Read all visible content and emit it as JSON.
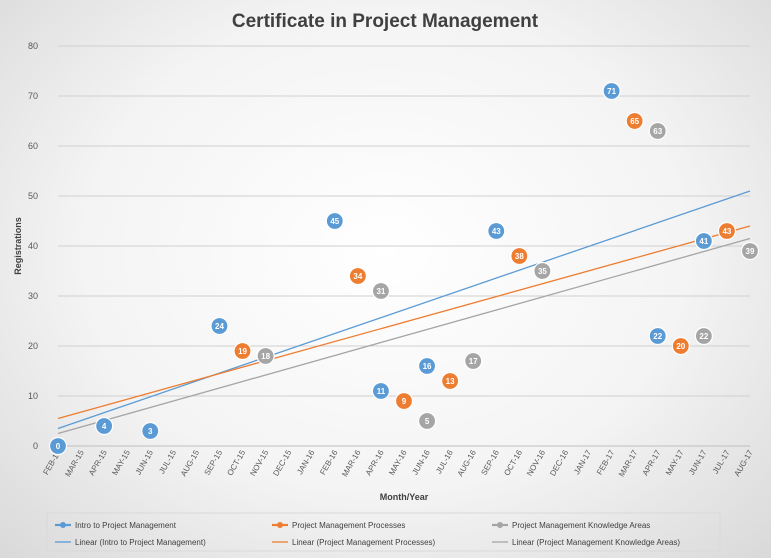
{
  "chart_data": {
    "type": "scatter",
    "title": "Certificate in Project Management",
    "xlabel": "Month/Year",
    "ylabel": "Registrations",
    "ylim": [
      0,
      80
    ],
    "yticks": [
      0,
      10,
      20,
      30,
      40,
      50,
      60,
      70,
      80
    ],
    "grid": true,
    "legend_position": "bottom",
    "categories": [
      "FEB-15",
      "MAR-15",
      "APR-15",
      "MAY-15",
      "JUN-15",
      "JUL-15",
      "AUG-15",
      "SEP-15",
      "OCT-15",
      "NOV-15",
      "DEC-15",
      "JAN-16",
      "FEB-16",
      "MAR-16",
      "APR-16",
      "MAY-16",
      "JUN-16",
      "JUL-16",
      "AUG-16",
      "SEP-16",
      "OCT-16",
      "NOV-16",
      "DEC-16",
      "JAN-17",
      "FEB-17",
      "MAR-17",
      "APR-17",
      "MAY-17",
      "JUN-17",
      "JUL-17",
      "AUG-17"
    ],
    "series": [
      {
        "name": "Intro to Project Management",
        "color": "#5b9bd5",
        "points": [
          {
            "x": "FEB-15",
            "y": 0
          },
          {
            "x": "APR-15",
            "y": 4
          },
          {
            "x": "JUN-15",
            "y": 3
          },
          {
            "x": "SEP-15",
            "y": 24
          },
          {
            "x": "FEB-16",
            "y": 45
          },
          {
            "x": "APR-16",
            "y": 11
          },
          {
            "x": "JUN-16",
            "y": 16
          },
          {
            "x": "SEP-16",
            "y": 43
          },
          {
            "x": "FEB-17",
            "y": 71
          },
          {
            "x": "APR-17",
            "y": 22
          },
          {
            "x": "JUN-17",
            "y": 41
          }
        ]
      },
      {
        "name": "Project Management Processes",
        "color": "#ed7d31",
        "points": [
          {
            "x": "OCT-15",
            "y": 19
          },
          {
            "x": "MAR-16",
            "y": 34
          },
          {
            "x": "MAY-16",
            "y": 9
          },
          {
            "x": "JUL-16",
            "y": 13
          },
          {
            "x": "OCT-16",
            "y": 38
          },
          {
            "x": "MAR-17",
            "y": 65
          },
          {
            "x": "MAY-17",
            "y": 20
          },
          {
            "x": "JUL-17",
            "y": 43
          }
        ]
      },
      {
        "name": "Project Management Knowledge Areas",
        "color": "#a5a5a5",
        "points": [
          {
            "x": "NOV-15",
            "y": 18
          },
          {
            "x": "APR-16",
            "y": 31
          },
          {
            "x": "JUN-16",
            "y": 5
          },
          {
            "x": "AUG-16",
            "y": 17
          },
          {
            "x": "NOV-16",
            "y": 35
          },
          {
            "x": "APR-17",
            "y": 63
          },
          {
            "x": "JUN-17",
            "y": 22
          },
          {
            "x": "AUG-17",
            "y": 39
          }
        ]
      }
    ],
    "trendlines": [
      {
        "name": "Linear (Intro to Project Management)",
        "color": "#5b9bd5",
        "start": {
          "x": "FEB-15",
          "y": 3.5
        },
        "end": {
          "x": "AUG-17",
          "y": 51
        }
      },
      {
        "name": "Linear (Project Management Processes)",
        "color": "#ed7d31",
        "start": {
          "x": "FEB-15",
          "y": 5.5
        },
        "end": {
          "x": "AUG-17",
          "y": 44
        }
      },
      {
        "name": "Linear (Project Management Knowledge Areas)",
        "color": "#a5a5a5",
        "start": {
          "x": "FEB-15",
          "y": 2.5
        },
        "end": {
          "x": "AUG-17",
          "y": 41.5
        }
      }
    ]
  }
}
